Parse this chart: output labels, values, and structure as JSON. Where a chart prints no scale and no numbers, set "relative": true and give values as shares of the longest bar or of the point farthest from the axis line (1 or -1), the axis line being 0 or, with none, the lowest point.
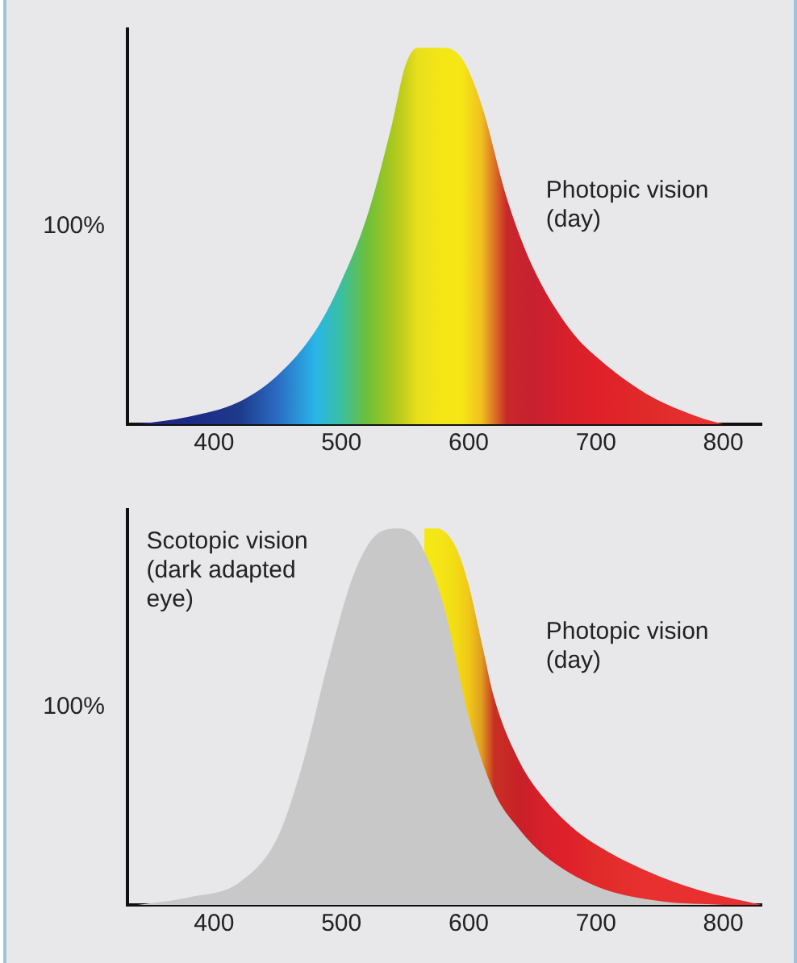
{
  "chart_data": [
    {
      "type": "area",
      "relative": true,
      "xlim": [
        332,
        830
      ],
      "xticks": [
        400,
        500,
        600,
        700,
        800
      ],
      "grid": false,
      "legend": false,
      "marker": "none",
      "annotations": [
        "100%"
      ],
      "series": [
        {
          "name": "Photopic vision (day)",
          "x": [
            340,
            380,
            420,
            450,
            480,
            500,
            520,
            540,
            550,
            560,
            580,
            595,
            610,
            630,
            650,
            680,
            700,
            740,
            780,
            800
          ],
          "values": [
            0,
            0.02,
            0.06,
            0.13,
            0.25,
            0.38,
            0.55,
            0.8,
            0.95,
            1,
            1,
            0.97,
            0.85,
            0.6,
            0.42,
            0.25,
            0.18,
            0.08,
            0.02,
            0
          ],
          "colors": [
            "#1a237e",
            "#1c2a86",
            "#1e3a8a",
            "#2b6cc4",
            "#29b6e8",
            "#3bbfa0",
            "#6cbf3a",
            "#a8c81e",
            "#c8d01c",
            "#e8e01c",
            "#f5e616",
            "#f5e616",
            "#f0c020",
            "#c8282a",
            "#c82030",
            "#d8202a",
            "#e0202a",
            "#e02a2a",
            "#e83030",
            "#e83030"
          ]
        }
      ]
    },
    {
      "type": "area",
      "relative": true,
      "xlim": [
        332,
        830
      ],
      "xticks": [
        400,
        500,
        600,
        700,
        800
      ],
      "grid": false,
      "legend": false,
      "marker": "none",
      "annotations": [
        "100%"
      ],
      "series": [
        {
          "name": "Photopic vision (day)",
          "x": [
            565,
            575,
            590,
            600,
            610,
            620,
            640,
            660,
            680,
            700,
            740,
            780,
            830
          ],
          "values": [
            1,
            1,
            0.95,
            0.85,
            0.7,
            0.55,
            0.38,
            0.28,
            0.21,
            0.16,
            0.09,
            0.04,
            0
          ],
          "colors": [
            "#f5e616",
            "#f5e616",
            "#f2dc14",
            "#f0c818",
            "#e0a020",
            "#c83024",
            "#c82028",
            "#d8202a",
            "#e0202a",
            "#e02a2a",
            "#e83030",
            "#e83030",
            "#e83030"
          ]
        },
        {
          "name": "Scotopic vision (dark adapted eye)",
          "x": [
            340,
            380,
            420,
            450,
            470,
            490,
            510,
            530,
            545,
            560,
            580,
            600,
            620,
            640,
            660,
            700,
            750,
            800
          ],
          "values": [
            0,
            0.02,
            0.06,
            0.18,
            0.38,
            0.65,
            0.88,
            0.99,
            1,
            0.97,
            0.8,
            0.5,
            0.3,
            0.2,
            0.13,
            0.05,
            0.01,
            0
          ],
          "colors": [
            "#c8c8c8",
            "#c8c8c8",
            "#c8c8c8",
            "#c8c8c8",
            "#c8c8c8",
            "#c8c8c8",
            "#c8c8c8",
            "#c8c8c8",
            "#c8c8c8",
            "#c8c8c8",
            "#c8c8c8",
            "#c8c8c8",
            "#c8c8c8",
            "#c8c8c8",
            "#c8c8c8",
            "#c8c8c8",
            "#c8c8c8",
            "#c8c8c8"
          ]
        }
      ]
    }
  ]
}
